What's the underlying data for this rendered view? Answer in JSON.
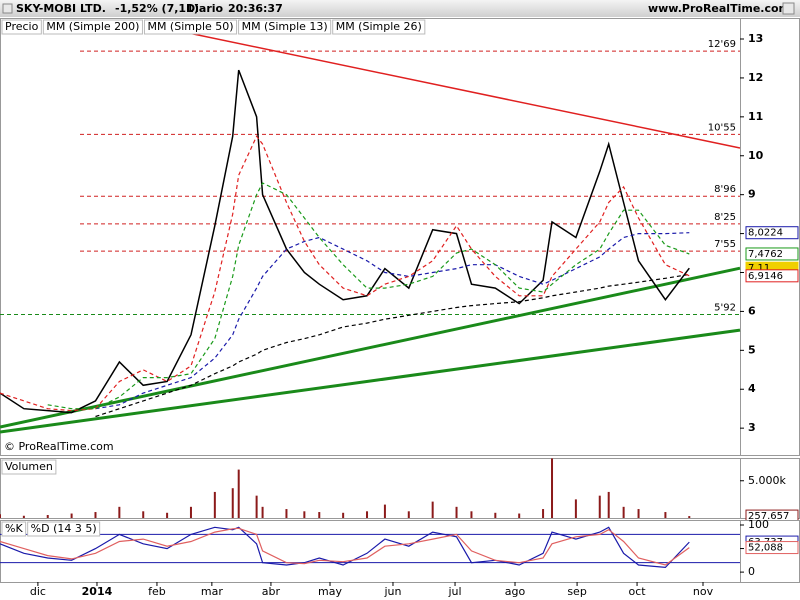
{
  "header": {
    "title": "SKY-MOBI LTD.",
    "change": "-1,52% (7,11)",
    "period": "Diario",
    "time": "20:36:37",
    "site": "www.ProRealTime.com"
  },
  "watermark": "© ProRealTime.com",
  "chart_data": [
    {
      "type": "line",
      "x": [
        0,
        8,
        16,
        24,
        32,
        40,
        48,
        56,
        64,
        72,
        78,
        80,
        86,
        88,
        96,
        102,
        107,
        115,
        123,
        129,
        137,
        145,
        153,
        158,
        166,
        174,
        182,
        185,
        193,
        201,
        204,
        209,
        214,
        223,
        231
      ],
      "xlim": [
        0,
        248
      ],
      "ylim": [
        2.31,
        13.54
      ],
      "yticks": [
        3,
        4,
        5,
        6,
        7,
        8,
        9,
        10,
        11,
        12,
        13
      ],
      "series": [
        {
          "name": "Precio",
          "color": "#000000",
          "values": [
            3.9,
            3.5,
            3.45,
            3.4,
            3.7,
            4.7,
            4.1,
            4.2,
            5.4,
            8.2,
            10.5,
            12.2,
            11.0,
            9.0,
            7.6,
            7.0,
            6.7,
            6.3,
            6.4,
            7.1,
            6.6,
            8.1,
            8.0,
            6.7,
            6.6,
            6.2,
            6.8,
            8.3,
            7.9,
            9.6,
            10.3,
            8.8,
            7.3,
            6.3,
            7.11
          ]
        },
        {
          "name": "MM (Simple 200)",
          "color": "#000000",
          "values": [
            null,
            null,
            null,
            null,
            3.3,
            3.5,
            3.7,
            3.9,
            4.1,
            4.4,
            4.6,
            4.7,
            4.9,
            5.0,
            5.2,
            5.3,
            5.4,
            5.6,
            5.7,
            5.8,
            5.9,
            6.0,
            6.1,
            6.15,
            6.2,
            6.25,
            6.35,
            6.4,
            6.5,
            6.6,
            6.65,
            6.7,
            6.75,
            6.85,
            6.95
          ]
        },
        {
          "name": "MM (Simple 50)",
          "color": "#1a1aaa",
          "values": [
            null,
            null,
            null,
            null,
            3.5,
            3.6,
            3.9,
            4.1,
            4.3,
            4.8,
            5.4,
            5.8,
            6.6,
            6.9,
            7.6,
            7.8,
            7.9,
            7.6,
            7.3,
            7.0,
            6.9,
            7.0,
            7.1,
            7.2,
            7.2,
            6.9,
            6.7,
            6.8,
            7.1,
            7.4,
            7.6,
            7.9,
            8.0,
            8.0,
            8.0224
          ]
        },
        {
          "name": "MM (Simple 13)",
          "color": "#e02020",
          "values": [
            3.9,
            3.7,
            3.5,
            3.45,
            3.5,
            4.2,
            4.5,
            4.2,
            4.6,
            6.5,
            8.5,
            9.5,
            10.5,
            10.3,
            8.8,
            7.8,
            7.2,
            6.6,
            6.4,
            6.7,
            6.9,
            7.3,
            8.2,
            7.6,
            6.9,
            6.4,
            6.4,
            6.9,
            7.6,
            8.3,
            8.8,
            9.2,
            8.4,
            7.2,
            6.9146
          ]
        },
        {
          "name": "MM (Simple 26)",
          "color": "#1a9a1a",
          "values": [
            null,
            null,
            3.6,
            3.5,
            3.5,
            3.8,
            4.3,
            4.3,
            4.4,
            5.3,
            6.9,
            7.7,
            9.0,
            9.3,
            9.0,
            8.4,
            7.9,
            7.2,
            6.6,
            6.6,
            6.7,
            6.9,
            7.5,
            7.6,
            7.2,
            6.6,
            6.5,
            6.7,
            7.2,
            7.6,
            8.0,
            8.6,
            8.6,
            7.7,
            7.4762
          ]
        }
      ],
      "levels": [
        {
          "value": 12.69,
          "label": "12'69",
          "color": "#d02020"
        },
        {
          "value": 10.55,
          "label": "10'55",
          "color": "#d02020"
        },
        {
          "value": 8.96,
          "label": "8'96",
          "color": "#d02020"
        },
        {
          "value": 8.25,
          "label": "8'25",
          "color": "#d02020"
        },
        {
          "value": 7.55,
          "label": "7'55",
          "color": "#d02020"
        },
        {
          "value": 5.92,
          "label": "5'92",
          "color": "#1a8a1a"
        }
      ],
      "trendlines": [
        {
          "color": "#e02020",
          "x": [
            50.3,
            248
          ],
          "values": [
            13.36,
            10.2
          ]
        },
        {
          "color": "#1a8a1a",
          "x": [
            0,
            248
          ],
          "values": [
            3.03,
            7.11
          ]
        },
        {
          "color": "#1a8a1a",
          "x": [
            0,
            248
          ],
          "values": [
            2.9,
            5.52
          ]
        }
      ],
      "last_labels": [
        {
          "value": 8.0224,
          "label": "8,0224",
          "color": "#1a1aaa"
        },
        {
          "value": 7.4762,
          "label": "7,4762",
          "color": "#1a9a1a"
        },
        {
          "value": 7.11,
          "label": "7,11",
          "color": "#f0d000"
        },
        {
          "value": 6.9146,
          "label": "6,9146",
          "color": "#e02020"
        }
      ]
    },
    {
      "type": "bar",
      "title": "Volumen",
      "color": "#8b1a1a",
      "x": [
        0,
        8,
        16,
        24,
        32,
        40,
        48,
        56,
        64,
        72,
        78,
        80,
        86,
        88,
        96,
        102,
        107,
        115,
        123,
        129,
        137,
        145,
        153,
        158,
        166,
        174,
        182,
        185,
        193,
        201,
        204,
        209,
        214,
        223,
        231
      ],
      "values": [
        500,
        300,
        400,
        600,
        800,
        1500,
        900,
        700,
        1500,
        3500,
        4000,
        6500,
        3000,
        1500,
        1200,
        900,
        800,
        700,
        900,
        1800,
        900,
        2200,
        1500,
        900,
        700,
        600,
        1200,
        8000,
        2500,
        3000,
        3500,
        1500,
        1200,
        800,
        257.657
      ],
      "xlim": [
        0,
        248
      ],
      "ylim": [
        0,
        8056
      ],
      "yticks": [
        {
          "value": 5000,
          "label": "5.000k"
        }
      ],
      "last_labels": [
        {
          "value": 257.657,
          "label": "257.657",
          "color": "#8b1a1a"
        }
      ]
    },
    {
      "type": "line",
      "x": [
        0,
        8,
        16,
        24,
        32,
        40,
        48,
        56,
        64,
        72,
        78,
        80,
        86,
        88,
        96,
        102,
        107,
        115,
        123,
        129,
        137,
        145,
        153,
        158,
        166,
        174,
        182,
        185,
        193,
        201,
        204,
        209,
        214,
        223,
        231
      ],
      "xlim": [
        0,
        248
      ],
      "ylim": [
        -21,
        110.6
      ],
      "yticks": [
        0,
        50,
        100
      ],
      "levels": [
        20,
        80
      ],
      "series": [
        {
          "name": "%K",
          "color": "#1a1aaa",
          "values": [
            60,
            40,
            30,
            25,
            50,
            80,
            60,
            50,
            80,
            95,
            90,
            95,
            60,
            20,
            15,
            20,
            30,
            15,
            40,
            70,
            55,
            85,
            75,
            20,
            25,
            15,
            40,
            85,
            70,
            85,
            95,
            40,
            15,
            10,
            63.737
          ]
        },
        {
          "name": "%D (14 3 5)",
          "color": "#e06060",
          "values": [
            65,
            50,
            35,
            28,
            40,
            65,
            70,
            55,
            65,
            85,
            92,
            93,
            80,
            45,
            20,
            18,
            25,
            22,
            30,
            55,
            60,
            70,
            80,
            45,
            25,
            20,
            30,
            60,
            75,
            80,
            90,
            65,
            30,
            15,
            52.088
          ]
        }
      ],
      "last_labels": [
        {
          "value": 63.737,
          "label": "63,737",
          "color": "#1a1aaa"
        },
        {
          "value": 52.088,
          "label": "52,088",
          "color": "#e06060"
        }
      ],
      "xticks": [
        {
          "value": 12.7,
          "label": "dic"
        },
        {
          "value": 32.5,
          "label": "2014"
        },
        {
          "value": 52.6,
          "label": "feb"
        },
        {
          "value": 71,
          "label": "mar"
        },
        {
          "value": 90.8,
          "label": "abr"
        },
        {
          "value": 110.6,
          "label": "may"
        },
        {
          "value": 131.7,
          "label": "jun"
        },
        {
          "value": 152.5,
          "label": "jul"
        },
        {
          "value": 172.6,
          "label": "ago"
        },
        {
          "value": 193.4,
          "label": "sep"
        },
        {
          "value": 213.5,
          "label": "oct"
        },
        {
          "value": 235.6,
          "label": "nov"
        }
      ]
    }
  ]
}
